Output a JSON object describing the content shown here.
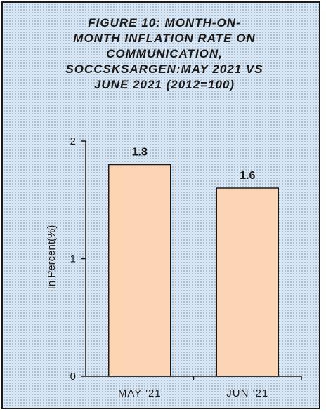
{
  "chart_data": {
    "type": "bar",
    "title": "FIGURE 10: MONTH-ON-MONTH INFLATION RATE ON COMMUNICATION, SOCCSKSARGEN:MAY 2021 VS JUNE 2021 (2012=100)",
    "title_lines": [
      "FIGURE 10: MONTH-ON-",
      "MONTH INFLATION RATE ON",
      "COMMUNICATION,",
      "SOCCSKSARGEN:MAY 2021 VS",
      "JUNE 2021 (2012=100)"
    ],
    "categories": [
      "MAY '21",
      "JUN '21"
    ],
    "values": [
      1.8,
      1.6
    ],
    "data_labels": [
      "1.8",
      "1.6"
    ],
    "xlabel": "",
    "ylabel": "In Percent(%)",
    "ylim": [
      0,
      2
    ],
    "yticks": [
      "0",
      "1",
      "2"
    ],
    "grid": false,
    "legend": "none",
    "bar_color": "#fcd5b4",
    "bar_edge_color": "#1a1a1a",
    "background_color": "#d9e7f5"
  }
}
